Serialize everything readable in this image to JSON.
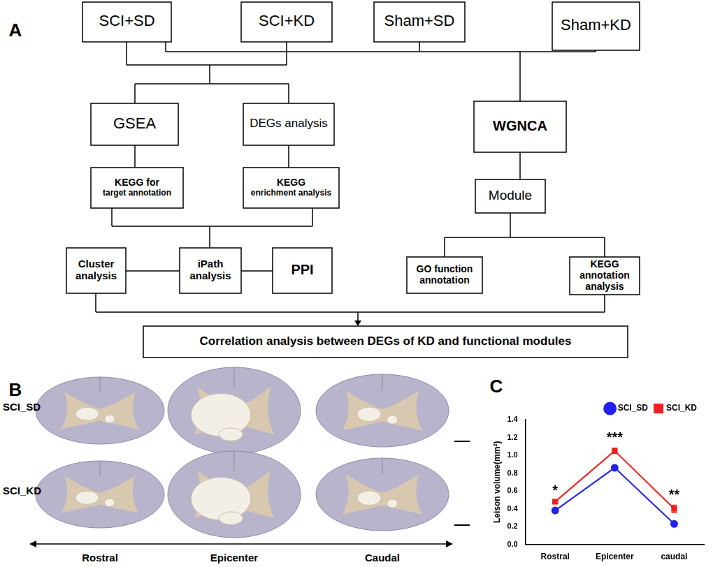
{
  "panel_labels": [
    "A",
    "B",
    "C"
  ],
  "diagram": {
    "nodes": [
      {
        "lines": [
          "SCI+SD"
        ]
      },
      {
        "lines": [
          "SCI+KD"
        ]
      },
      {
        "lines": [
          "Sham+SD"
        ]
      },
      {
        "lines": [
          "Sham+KD"
        ]
      },
      {
        "lines": [
          "GSEA"
        ]
      },
      {
        "lines": [
          "DEGs analysis"
        ]
      },
      {
        "lines": [
          "WGNCA"
        ]
      },
      {
        "lines": [
          "KEGG for",
          "target annotation"
        ]
      },
      {
        "lines": [
          "KEGG",
          "enrichment analysis"
        ]
      },
      {
        "lines": [
          "Module"
        ]
      },
      {
        "lines": [
          "Cluster",
          "analysis"
        ]
      },
      {
        "lines": [
          "iPath",
          "analysis"
        ]
      },
      {
        "lines": [
          "PPI"
        ]
      },
      {
        "lines": [
          "GO function",
          "annotation"
        ]
      },
      {
        "lines": [
          "KEGG",
          "annotation",
          "analysis"
        ]
      },
      {
        "lines": [
          "Correlation analysis between DEGs of KD and functional modules"
        ]
      }
    ]
  },
  "histology": {
    "row_labels": [
      "SCI_SD",
      "SCI_KD"
    ],
    "column_labels": [
      "Rostral",
      "Epicenter",
      "Caudal"
    ]
  },
  "chart_data": {
    "type": "line",
    "categories": [
      "Rostral",
      "Epicenter",
      "caudal"
    ],
    "series": [
      {
        "name": "SCI_SD",
        "color": "#2020f0",
        "marker": "circle",
        "values": [
          0.38,
          0.86,
          0.23
        ],
        "errors": [
          0.015,
          0.02,
          0.02
        ]
      },
      {
        "name": "SCI_KD",
        "color": "#f02020",
        "marker": "square",
        "values": [
          0.48,
          1.05,
          0.4
        ],
        "errors": [
          0.01,
          0.03,
          0.04
        ]
      }
    ],
    "y_label": "Leison volume(mm²)",
    "ylim": [
      0,
      1.4
    ],
    "yticks": [
      {
        "value": 0,
        "label": "0.0"
      },
      0.2,
      0.4,
      0.6,
      0.8,
      {
        "value": 1,
        "label": "1.0"
      },
      1.2,
      1.4
    ],
    "significance": [
      "*",
      "***",
      "**"
    ],
    "legend": "upper right",
    "grid": false,
    "data_labels": false
  }
}
